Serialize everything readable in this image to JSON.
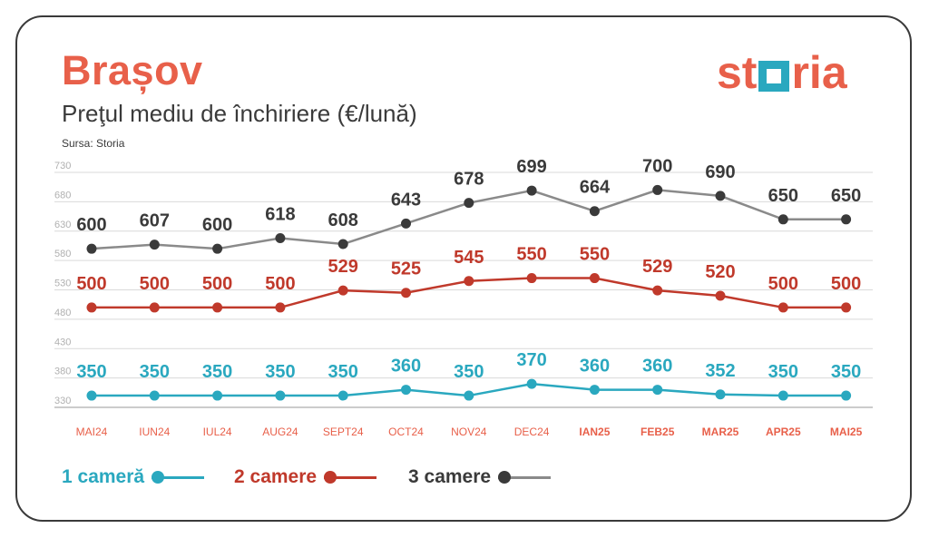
{
  "header": {
    "city": "Brașov",
    "subtitle": "Preţul mediu de închiriere (€/lună)",
    "source": "Sursa: Storia",
    "logo_before": "st",
    "logo_after": "ria"
  },
  "colors": {
    "accent": "#e8604a",
    "teal": "#2aa8bf",
    "red": "#c0392b",
    "dark": "#3a3a3a",
    "grey": "#8a8a8a"
  },
  "chart_data": {
    "type": "line",
    "categories": [
      "MAI24",
      "IUN24",
      "IUL24",
      "AUG24",
      "SEPT24",
      "OCT24",
      "NOV24",
      "DEC24",
      "IAN25",
      "FEB25",
      "MAR25",
      "APR25",
      "MAI25"
    ],
    "yticks": [
      330,
      380,
      430,
      480,
      530,
      580,
      630,
      680,
      730
    ],
    "ylim": [
      330,
      730
    ],
    "grid": true,
    "series": [
      {
        "name": "1 cameră",
        "values": [
          350,
          350,
          350,
          350,
          350,
          360,
          350,
          370,
          360,
          360,
          352,
          350,
          350
        ]
      },
      {
        "name": "2 camere",
        "values": [
          500,
          500,
          500,
          500,
          529,
          525,
          545,
          550,
          550,
          529,
          520,
          500,
          500
        ]
      },
      {
        "name": "3 camere",
        "values": [
          600,
          607,
          600,
          618,
          608,
          643,
          678,
          699,
          664,
          700,
          690,
          650,
          650
        ]
      }
    ]
  },
  "legend": [
    {
      "label": "1 cameră"
    },
    {
      "label": "2 camere"
    },
    {
      "label": "3 camere"
    }
  ]
}
